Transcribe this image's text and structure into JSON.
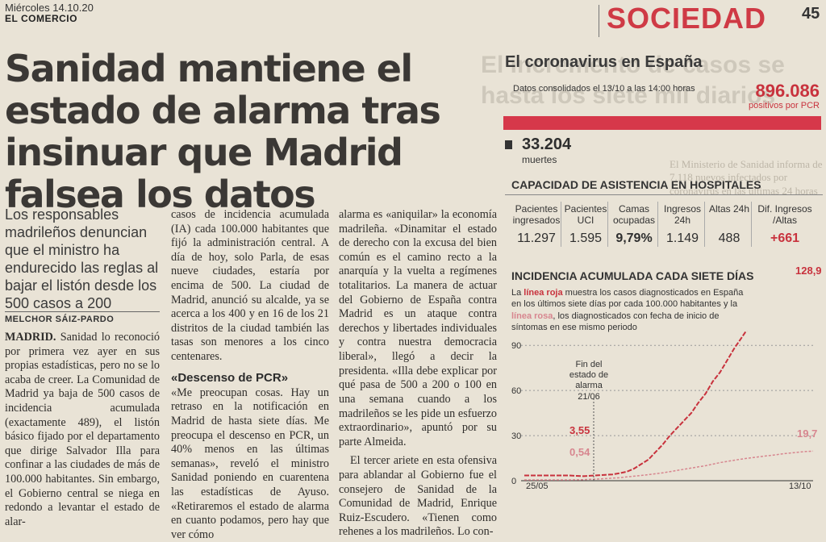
{
  "masthead": {
    "date": "Miércoles 14.10.20",
    "paper": "EL COMERCIO",
    "section": "SOCIEDAD",
    "page_number": "45"
  },
  "article": {
    "headline": "Sanidad mantiene el estado de alarma tras insinuar que Madrid falsea los datos",
    "subheadline": "Los responsables madrileños denuncian que el ministro ha endurecido las reglas al bajar el listón desde los 500 casos a 200",
    "byline": "MELCHOR SÁIZ-PARDO",
    "col1": {
      "lead": "MADRID.",
      "text": " Sanidad lo reconoció por primera vez ayer en sus propias estadísticas, pero no se lo acaba de creer. La Comunidad de Madrid ya baja de 500 casos de incidencia acumulada (exactamente 489), el listón básico fijado por el departamento que dirige Salvador Illa para confinar a las ciudades de más de 100.000 habitantes. Sin embargo, el Gobierno central se niega en redondo a levantar el estado de alar-"
    },
    "col2": {
      "text1": "casos de incidencia acumulada (IA) cada 100.000 habitantes que fijó la administración central. A día de hoy, solo Parla, de esas nueve ciudades, estaría por encima de 500. La ciudad de Madrid, anunció su alcalde, ya se acerca a los 400 y en 16 de los 21 distritos de la ciudad también las tasas son menores a los cinco centenares.",
      "subhead": "«Descenso de PCR»",
      "text2": "«Me preocupan cosas. Hay un retraso en la notificación en Madrid de hasta siete días. Me preocupa el descenso en PCR, un 40% menos en las últimas semanas», reveló el ministro Sanidad poniendo en cuarentena las estadísticas de Ayuso. «Retiraremos el estado de alarma en cuanto podamos, pero hay que ver cómo"
    },
    "col3": {
      "text1": "alarma es «aniquilar» la economía madrileña. «Dinamitar el estado de derecho con la excusa del bien común es el camino recto a la anarquía y la vuelta a regímenes totalitarios. La manera de actuar del Gobierno de España contra Madrid es un ataque contra derechos y libertades individuales y contra nuestra democracia liberal», llegó a decir la presidenta. «Illa debe explicar por qué pasa de 500 a 200 o 100 en una semana cuando a los madrileños se les pide un esfuerzo extraordinario», apuntó por su parte Almeida.",
      "text2": "El tercer ariete en esta ofensiva para ablandar al Gobierno fue el consejero de Sanidad de la Comunidad de Madrid, Enrique Ruiz-Escudero. «Tienen como rehenes a los madrileños. Lo con-"
    }
  },
  "infographic": {
    "title": "El coronavirus en España",
    "consolidated": "Datos consolidados el 13/10 a las 14:00 horas",
    "pcr_value": "896.086",
    "pcr_label": "positivos por PCR",
    "deaths_value": "33.204",
    "deaths_label": "muertes",
    "capacity_title": "CAPACIDAD DE ASISTENCIA EN HOSPITALES",
    "capacity": [
      {
        "label": "Pacientes ingresados",
        "value": "11.297"
      },
      {
        "label": "Pacientes UCI",
        "value": "1.595"
      },
      {
        "label": "Camas ocupadas",
        "value": "9,79%"
      },
      {
        "label": "Ingresos 24h",
        "value": "1.149"
      },
      {
        "label": "Altas 24h",
        "value": "488"
      },
      {
        "label": "Dif. Ingresos /Altas",
        "value": "+661"
      }
    ],
    "incidence_title": "INCIDENCIA ACUMULADA CADA SIETE DÍAS",
    "desc_pre": "La ",
    "desc_red": "línea roja",
    "desc_mid": " muestra los casos diagnosticados en España en los últimos siete días por cada 100.000 habitantes y la ",
    "desc_pink": "línea rosa",
    "desc_post": ", los diagnosticados con fecha de inicio de síntomas en ese mismo periodo",
    "annotation_fin": "Fin del estado de alarma 21/06",
    "red_start": "3,55",
    "pink_start": "0,54",
    "red_end": "128,9",
    "pink_end": "19,7"
  },
  "chart_data": {
    "type": "line",
    "title": "INCIDENCIA ACUMULADA CADA SIETE DÍAS",
    "x_labels": [
      "25/05",
      "13/10"
    ],
    "yticks": [
      0,
      30,
      60,
      90
    ],
    "ylim": [
      0,
      140
    ],
    "series": [
      {
        "name": "línea roja",
        "color": "#c8323d",
        "points": [
          3.5,
          3.2,
          3,
          3.3,
          3.6,
          3.9,
          4.2,
          5,
          6,
          8,
          11,
          14,
          19,
          24,
          30,
          35,
          40,
          45,
          52,
          58,
          66,
          72,
          80,
          88,
          95,
          102,
          110,
          115,
          120,
          126,
          132,
          120,
          105,
          112,
          128.9
        ]
      },
      {
        "name": "línea rosa",
        "color": "#d7868f",
        "points": [
          0.54,
          0.6,
          0.7,
          0.9,
          1.1,
          1.4,
          1.7,
          2,
          2.5,
          3,
          3.5,
          4,
          4.6,
          5.2,
          6,
          6.8,
          7.6,
          8.4,
          9.2,
          10,
          11,
          12,
          12.8,
          13.6,
          14.4,
          15,
          15.6,
          16.2,
          16.8,
          17.4,
          18,
          18.5,
          19,
          19.4,
          19.7
        ]
      }
    ],
    "colors": {
      "accent": "#c8323d",
      "pink": "#d7868f"
    }
  }
}
